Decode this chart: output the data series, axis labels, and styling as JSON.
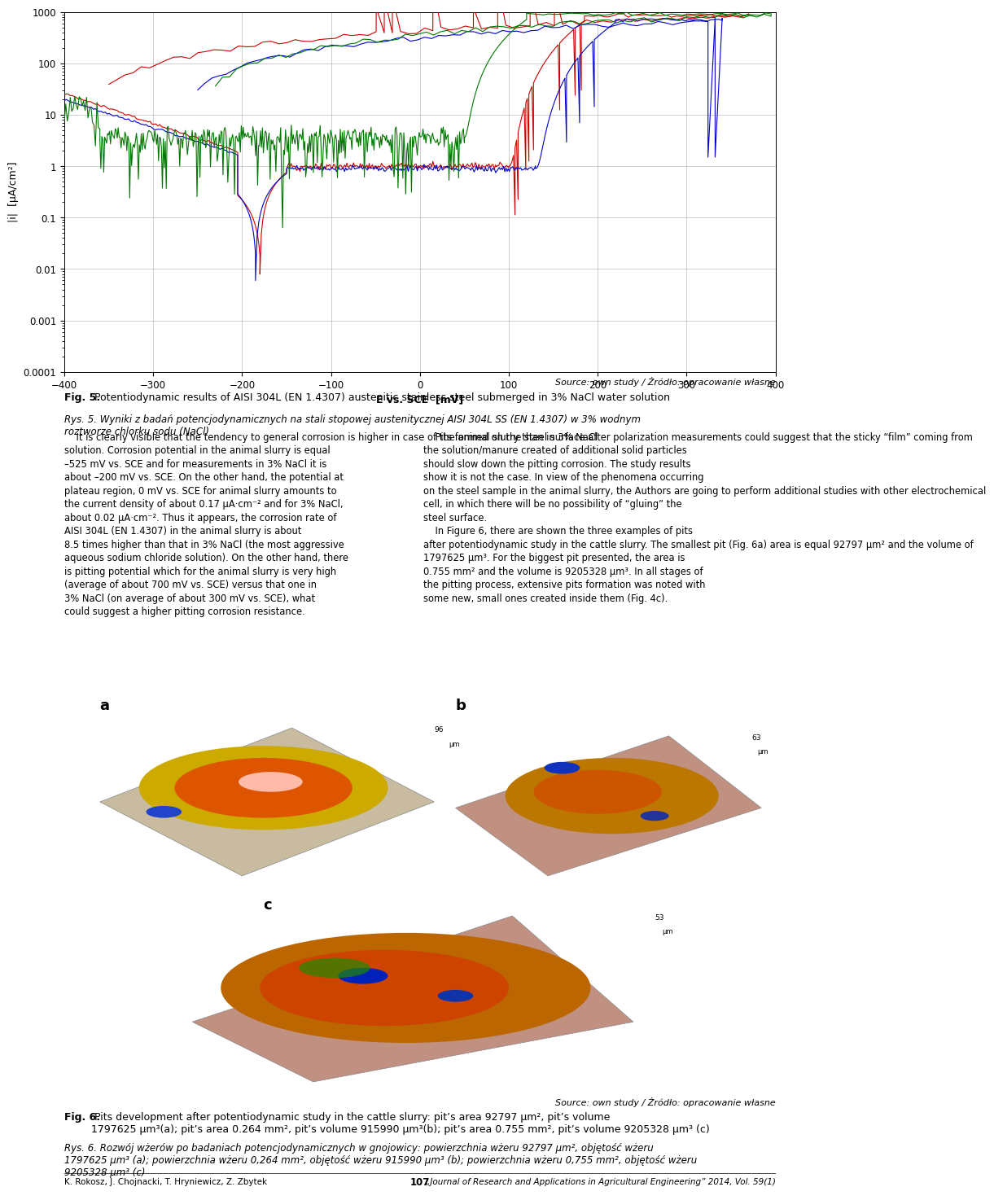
{
  "xlabel": "E vs. SCE  [mV]",
  "ylabel": "|i|  [μA/cm²]",
  "xlim": [
    -400,
    400
  ],
  "ylim_log": [
    0.0001,
    1000
  ],
  "xticks": [
    -400,
    -300,
    -200,
    -100,
    0,
    100,
    200,
    300,
    400
  ],
  "yticks": [
    0.0001,
    0.001,
    0.01,
    0.1,
    1,
    10,
    100,
    1000
  ],
  "ytick_labels": [
    "0.0001",
    "0.001",
    "0.01",
    "0.1",
    "1",
    "10",
    "100",
    "1000"
  ],
  "source_text": "Source: own study / Źródło: opracowanie własne",
  "fig5_bold": "Fig. 5.",
  "fig5_normal": " Potentiodynamic results of AISI 304L (EN 1.4307) austenitic stainless steel submerged in 3% NaCl water solution",
  "fig5_italic": "Rys. 5. Wyniki z badań potencjodynamicznych na stali stopowej austenitycznej AISI 304L SS (EN 1.4307) w 3% wodnym\nroztworze chlorku sodu (NaCl)",
  "para_left": "    It is clearly visible that the tendency to general corrosion is higher in case of the animal slurry than in 3% NaCl\nsolution. Corrosion potential in the animal slurry is equal\n–525 mV vs. SCE and for measurements in 3% NaCl it is\nabout –200 mV vs. SCE. On the other hand, the potential at\nplateau region, 0 mV vs. SCE for animal slurry amounts to\nthe current density of about 0.17 μA·cm⁻² and for 3% NaCl,\nabout 0.02 μA·cm⁻². Thus it appears, the corrosion rate of\nAISI 304L (EN 1.4307) in the animal slurry is about\n8.5 times higher than that in 3% NaCl (the most aggressive\naqueous sodium chloride solution). On the other hand, there\nis pitting potential which for the animal slurry is very high\n(average of about 700 mV vs. SCE) versus that one in\n3% NaCl (on average of about 300 mV vs. SCE), what\ncould suggest a higher pitting corrosion resistance.",
  "para_right": "    Pits formed on the steel surface after polarization measurements could suggest that the sticky “film” coming from\nthe solution/manure created of additional solid particles\nshould slow down the pitting corrosion. The study results\nshow it is not the case. In view of the phenomena occurring\non the steel sample in the animal slurry, the Authors are going to perform additional studies with other electrochemical\ncell, in which there will be no possibility of “gluing” the\nsteel surface.\n    In Figure 6, there are shown the three examples of pits\nafter potentiodynamic study in the cattle slurry. The smallest pit (Fig. 6a) area is equal 92797 μm² and the volume of\n1797625 μm³. For the biggest pit presented, the area is\n0.755 mm² and the volume is 9205328 μm³. In all stages of\nthe pitting process, extensive pits formation was noted with\nsome new, small ones created inside them (Fig. 4c).",
  "fig6_bold": "Fig. 6.",
  "fig6_normal": " Pits development after potentiodynamic study in the cattle slurry: pit’s area 92797 μm², pit’s volume\n1797625 μm³(a); pit’s area 0.264 mm², pit’s volume 915990 μm³(b); pit’s area 0.755 mm², pit’s volume 9205328 μm³ (c)",
  "fig6_italic": "Rys. 6. Rozwój wżerów po badaniach potencjodynamicznych w gnojowicy: powierzchnia wżeru 92797 μm², objętość wżeru\n1797625 μm³ (a); powierzchnia wżeru 0,264 mm², objętość wżeru 915990 μm³ (b); powierzchnia wżeru 0,755 mm², objętość wżeru\n9205328 μm³ (c)",
  "footer_left": "K. Rokosz, J. Chojnacki, T. Hryniewicz, Z. Zbytek",
  "footer_center": "107",
  "footer_right": "„Journal of Research and Applications in Agricultural Engineering” 2014, Vol. 59(1)",
  "col_red": "#cc0000",
  "col_blue": "#0000cc",
  "col_green": "#007700",
  "col_bg": "#ffffff",
  "col_grid": "#aaaaaa",
  "col_text": "#000000",
  "label_a": "a",
  "label_b": "b",
  "label_c": "c"
}
